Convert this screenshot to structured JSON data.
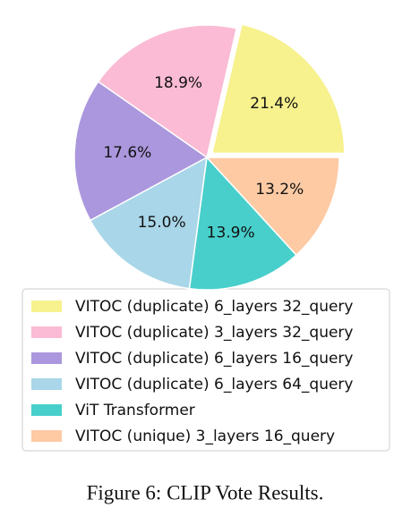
{
  "chart_data": {
    "type": "pie",
    "categories": [
      "VITOC (duplicate) 6_layers 32_query",
      "VITOC (duplicate) 3_layers 32_query",
      "VITOC (duplicate) 6_layers 16_query",
      "VITOC (duplicate) 6_layers 64_query",
      "ViT Transformer",
      "VITOC (unique) 3_layers 16_query"
    ],
    "values": [
      21.4,
      18.9,
      17.6,
      15.0,
      13.9,
      13.2
    ],
    "value_labels": [
      "21.4%",
      "18.9%",
      "17.6%",
      "15.0%",
      "13.9%",
      "13.2%"
    ],
    "colors": [
      "#f7f18e",
      "#fbbbd4",
      "#ab97dd",
      "#a9d6e8",
      "#48cfcb",
      "#fdcaa4"
    ],
    "explode": [
      0.05,
      0,
      0,
      0,
      0,
      0
    ],
    "legend": "lower center"
  },
  "caption": "Figure 6: CLIP Vote Results."
}
